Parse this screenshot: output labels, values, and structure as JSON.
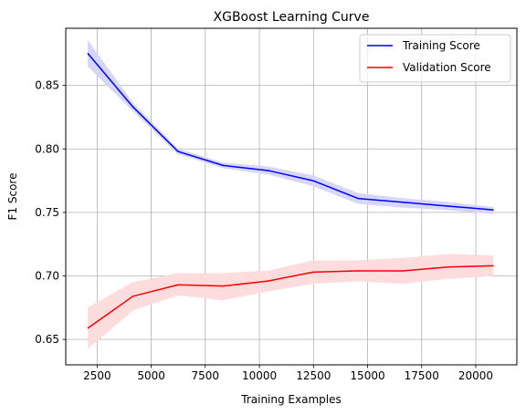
{
  "chart_data": {
    "type": "line",
    "title": "XGBoost Learning Curve",
    "xlabel": "Training Examples",
    "ylabel": "F1 Score",
    "xlim": [
      1050,
      21900
    ],
    "ylim": [
      0.63,
      0.895
    ],
    "xticks": [
      2500,
      5000,
      7500,
      10000,
      12500,
      15000,
      17500,
      20000
    ],
    "yticks": [
      0.65,
      0.7,
      0.75,
      0.8,
      0.85
    ],
    "xtick_labels": [
      "2500",
      "5000",
      "7500",
      "10000",
      "12500",
      "15000",
      "17500",
      "20000"
    ],
    "ytick_labels": [
      "0.65",
      "0.70",
      "0.75",
      "0.80",
      "0.85"
    ],
    "grid": true,
    "legend_position": "top-right",
    "x": [
      2080,
      4160,
      6240,
      8320,
      10400,
      12480,
      14560,
      16640,
      18720,
      20800
    ],
    "series": [
      {
        "name": "Training Score",
        "color": "#0000ff",
        "band_color": "#d6d6fa",
        "values": [
          0.875,
          0.833,
          0.798,
          0.787,
          0.783,
          0.775,
          0.761,
          0.758,
          0.755,
          0.752
        ],
        "lower": [
          0.865,
          0.83,
          0.796,
          0.785,
          0.78,
          0.771,
          0.757,
          0.754,
          0.752,
          0.749
        ],
        "upper": [
          0.885,
          0.836,
          0.8,
          0.789,
          0.786,
          0.779,
          0.765,
          0.761,
          0.758,
          0.754
        ]
      },
      {
        "name": "Validation Score",
        "color": "#ff0000",
        "band_color": "#fcdcdc",
        "values": [
          0.659,
          0.684,
          0.693,
          0.692,
          0.696,
          0.703,
          0.704,
          0.704,
          0.707,
          0.708
        ],
        "lower": [
          0.643,
          0.673,
          0.685,
          0.681,
          0.688,
          0.694,
          0.696,
          0.694,
          0.698,
          0.7
        ],
        "upper": [
          0.675,
          0.695,
          0.702,
          0.702,
          0.704,
          0.712,
          0.712,
          0.714,
          0.717,
          0.716
        ]
      }
    ]
  }
}
